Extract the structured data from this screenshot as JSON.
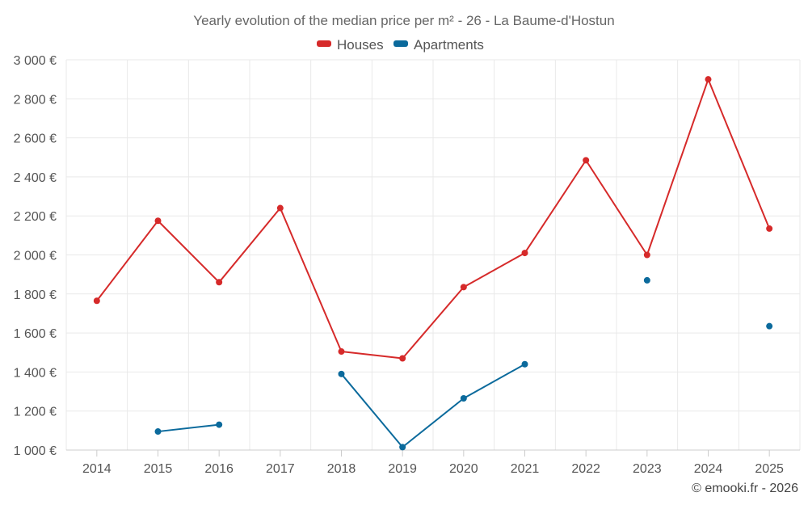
{
  "chart_data": {
    "type": "line",
    "title": "Yearly evolution of the median price per m² - 26 - La Baume-d'Hostun",
    "categories": [
      "2014",
      "2015",
      "2016",
      "2017",
      "2018",
      "2019",
      "2020",
      "2021",
      "2022",
      "2023",
      "2024",
      "2025"
    ],
    "series": [
      {
        "name": "Houses",
        "color": "#d62a2a",
        "values": [
          1765,
          2175,
          1860,
          2240,
          1505,
          1470,
          1835,
          2010,
          2485,
          2000,
          2900,
          2135
        ]
      },
      {
        "name": "Apartments",
        "color": "#0b6a9c",
        "values": [
          null,
          1095,
          1130,
          null,
          1390,
          1015,
          1265,
          1440,
          null,
          1870,
          null,
          1635
        ]
      }
    ],
    "yticks": [
      "1 000 €",
      "1 200 €",
      "1 400 €",
      "1 600 €",
      "1 800 €",
      "2 000 €",
      "2 200 €",
      "2 400 €",
      "2 600 €",
      "2 800 €",
      "3 000 €"
    ],
    "ylim": [
      1000,
      3000
    ],
    "xlabel": "",
    "ylabel": "",
    "grid": true,
    "legend_position": "top-center"
  },
  "credit": "© emooki.fr - 2026"
}
